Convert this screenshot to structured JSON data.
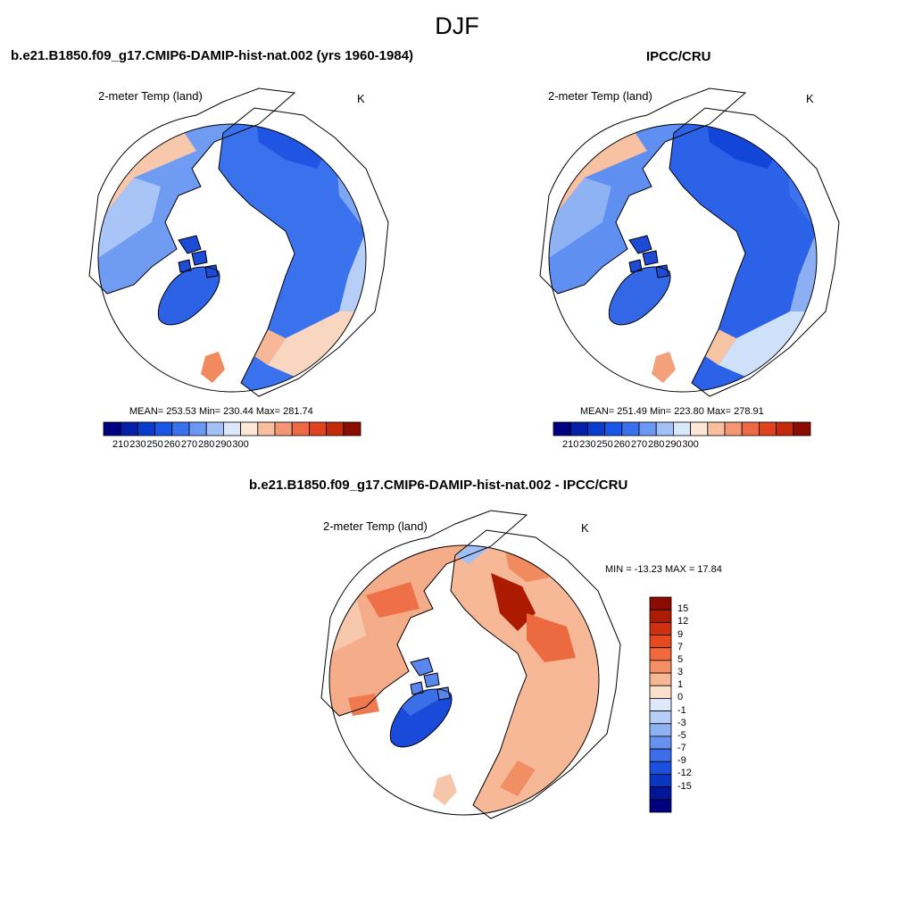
{
  "figure": {
    "season_title": "DJF"
  },
  "panels": [
    {
      "id": "model",
      "title": "b.e21.B1850.f09_g17.CMIP6-DAMIP-hist-nat.002 (yrs 1960-1984)",
      "variable": "2-meter Temp (land)",
      "units": "K",
      "stats_text": "MEAN= 253.53  Min= 230.44  Max= 281.74",
      "mean": 253.53,
      "min": 230.44,
      "max": 281.74,
      "colorbar": {
        "orientation": "horizontal",
        "labels": [
          "210",
          "230",
          "250",
          "260",
          "270",
          "280",
          "290",
          "300"
        ],
        "colors": [
          "#000082",
          "#0520a6",
          "#0a3ccc",
          "#1a55e6",
          "#3a72ee",
          "#6b98f2",
          "#a3c0f6",
          "#dbe8fb",
          "#fde6d5",
          "#f7bf9f",
          "#f29673",
          "#ec6a45",
          "#e2431f",
          "#c22a0b",
          "#8b0c00"
        ]
      }
    },
    {
      "id": "obs",
      "title": "IPCC/CRU",
      "variable": "2-meter Temp (land)",
      "units": "K",
      "stats_text": "MEAN= 251.49  Min= 223.80  Max= 278.91",
      "mean": 251.49,
      "min": 223.8,
      "max": 278.91,
      "colorbar": {
        "orientation": "horizontal",
        "labels": [
          "210",
          "230",
          "250",
          "260",
          "270",
          "280",
          "290",
          "300"
        ],
        "colors": [
          "#000082",
          "#0520a6",
          "#0a3ccc",
          "#1a55e6",
          "#3a72ee",
          "#6b98f2",
          "#a3c0f6",
          "#dbe8fb",
          "#fde6d5",
          "#f7bf9f",
          "#f29673",
          "#ec6a45",
          "#e2431f",
          "#c22a0b",
          "#8b0c00"
        ]
      }
    },
    {
      "id": "diff",
      "title": "b.e21.B1850.f09_g17.CMIP6-DAMIP-hist-nat.002 - IPCC/CRU",
      "variable": "2-meter Temp (land)",
      "units": "K",
      "stats_text": "MIN = -13.23 MAX =  17.84",
      "min": -13.23,
      "max": 17.84,
      "colorbar": {
        "orientation": "vertical",
        "labels": [
          "15",
          "12",
          "9",
          "7",
          "5",
          "3",
          "1",
          "0",
          "-1",
          "-3",
          "-5",
          "-7",
          "-9",
          "-12",
          "-15"
        ],
        "colors": [
          "#8b0c00",
          "#ad1d04",
          "#cf3010",
          "#e74a1e",
          "#f06a3e",
          "#f38f63",
          "#f6b894",
          "#fbe0cc",
          "#dde9fb",
          "#b5cdf7",
          "#8fb2f4",
          "#6791ef",
          "#3d6de8",
          "#1b4fdd",
          "#0a36c4",
          "#02169a",
          "#00007f"
        ]
      }
    }
  ],
  "map_colors": {
    "ocean": "#ffffff",
    "coast": "#000000"
  }
}
